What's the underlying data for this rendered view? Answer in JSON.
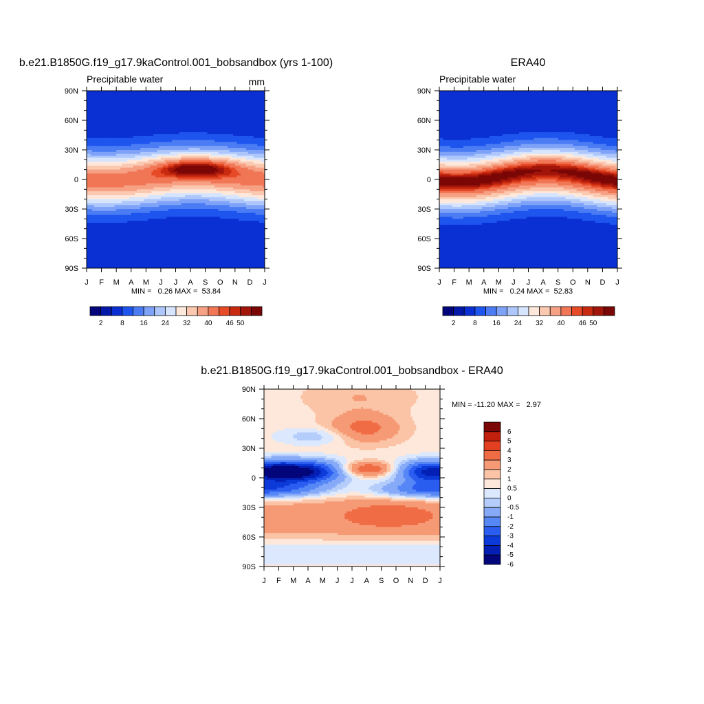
{
  "chart_data": [
    {
      "type": "heatmap",
      "title": "b.e21.B1850G.f19_g17.9kaControl.001_bobsandbox (yrs 1-100)",
      "left_label": "Precipitable water",
      "units": "mm",
      "stats": "MIN =   0.26 MAX =  53.84",
      "x_ticks": [
        "J",
        "F",
        "M",
        "A",
        "M",
        "J",
        "J",
        "A",
        "S",
        "O",
        "N",
        "D",
        "J"
      ],
      "y_ticks": [
        "90N",
        "60N",
        "30N",
        "0",
        "30S",
        "60S",
        "90S"
      ],
      "colorbar_labels": [
        "2",
        "8",
        "16",
        "24",
        "32",
        "40",
        "46",
        "50"
      ],
      "levels": [
        2,
        4,
        8,
        12,
        16,
        20,
        24,
        28,
        32,
        36,
        40,
        44,
        46,
        48,
        50
      ],
      "source": "model"
    },
    {
      "type": "heatmap",
      "title": "ERA40",
      "left_label": "Precipitable water",
      "units": "",
      "stats": "MIN =   0.24 MAX =  52.83",
      "x_ticks": [
        "J",
        "F",
        "M",
        "A",
        "M",
        "J",
        "J",
        "A",
        "S",
        "O",
        "N",
        "D",
        "J"
      ],
      "y_ticks": [
        "90N",
        "60N",
        "30N",
        "0",
        "30S",
        "60S",
        "90S"
      ],
      "colorbar_labels": [
        "2",
        "8",
        "16",
        "24",
        "32",
        "40",
        "46",
        "50"
      ],
      "levels": [
        2,
        4,
        8,
        12,
        16,
        20,
        24,
        28,
        32,
        36,
        40,
        44,
        46,
        48,
        50
      ],
      "source": "obs"
    },
    {
      "type": "heatmap",
      "title": "b.e21.B1850G.f19_g17.9kaControl.001_bobsandbox - ERA40",
      "stats": "MIN = -11.20 MAX =   2.97",
      "x_ticks": [
        "J",
        "F",
        "M",
        "A",
        "M",
        "J",
        "J",
        "A",
        "S",
        "O",
        "N",
        "D",
        "J"
      ],
      "y_ticks": [
        "90N",
        "60N",
        "30N",
        "0",
        "30S",
        "60S",
        "90S"
      ],
      "colorbar_labels": [
        "6",
        "5",
        "4",
        "3",
        "2",
        "1",
        "0.5",
        "0",
        "-0.5",
        "-1",
        "-2",
        "-3",
        "-4",
        "-5",
        "-6"
      ],
      "levels": [
        -6,
        -5,
        -4,
        -3,
        -2,
        -1,
        -0.5,
        0,
        0.5,
        1,
        2,
        3,
        4,
        5,
        6
      ],
      "source": "diff"
    }
  ],
  "colors": {
    "pw_palette": [
      "#02067a",
      "#0418a8",
      "#0a30d4",
      "#1e55ee",
      "#4b7cf4",
      "#7ea2f8",
      "#adc6fb",
      "#d6e5fd",
      "#fde8db",
      "#fbc8b0",
      "#f6a184",
      "#f07656",
      "#e64a26",
      "#c82a10",
      "#a2150a",
      "#7a0606"
    ],
    "diff_palette": [
      "#02067a",
      "#0420b4",
      "#0c3ad8",
      "#2a5df0",
      "#5687f6",
      "#86aaf8",
      "#b4cdfb",
      "#dbe8fd",
      "#fde8db",
      "#fbc4a6",
      "#f69a76",
      "#f06c44",
      "#e24020",
      "#c0200c",
      "#7a0606"
    ]
  }
}
